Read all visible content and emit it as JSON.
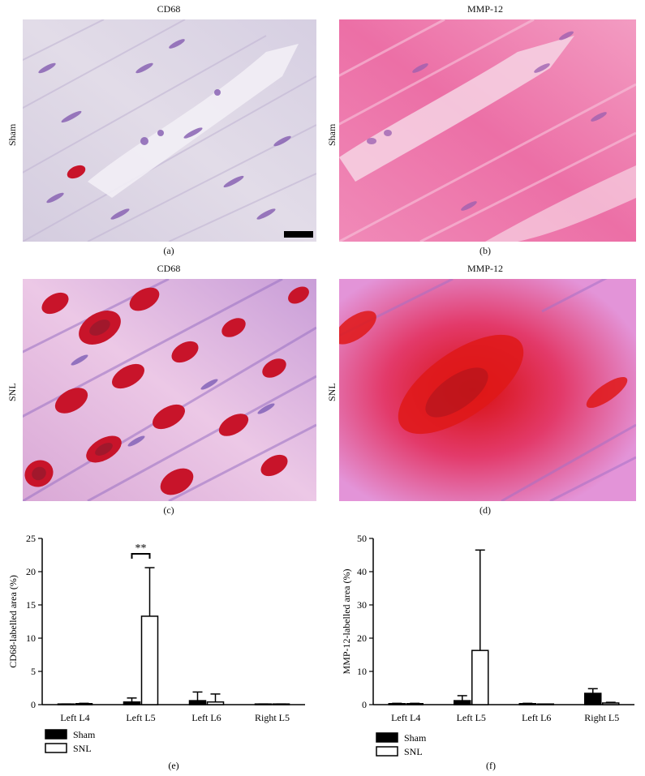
{
  "panels": [
    {
      "id": "a",
      "stain": "CD68",
      "group": "Sham",
      "label": "(a)"
    },
    {
      "id": "b",
      "stain": "MMP-12",
      "group": "Sham",
      "label": "(b)"
    },
    {
      "id": "c",
      "stain": "CD68",
      "group": "SNL",
      "label": "(c)"
    },
    {
      "id": "d",
      "stain": "MMP-12",
      "group": "SNL",
      "label": "(d)"
    }
  ],
  "colors": {
    "sham_bg": "#d8d2e2",
    "sham_nucleus": "#8a64b4",
    "mmp_sham_bg": "#ee88b4",
    "snl_bg": "#e4b4dc",
    "cd68_stain": "#c8142a",
    "mmp_snl_stain": "#e01818"
  },
  "chart_data": [
    {
      "type": "bar",
      "panel_label": "(e)",
      "ylabel": "CD68-labelled area (%)",
      "categories": [
        "Left L4",
        "Left L5",
        "Left L6",
        "Right L5"
      ],
      "ylim": [
        0,
        25
      ],
      "yticks": [
        0,
        5,
        10,
        15,
        20,
        25
      ],
      "series": [
        {
          "name": "Sham",
          "fill": "#000000",
          "values": [
            0.05,
            0.4,
            0.6,
            0.05
          ],
          "errors": [
            0.05,
            0.6,
            1.3,
            0.05
          ]
        },
        {
          "name": "SNL",
          "fill": "#ffffff",
          "values": [
            0.15,
            13.3,
            0.4,
            0.05
          ],
          "errors": [
            0.05,
            7.3,
            1.2,
            0.05
          ]
        }
      ],
      "significance": {
        "category": "Left L5",
        "text": "**"
      },
      "legend": "bottom-left"
    },
    {
      "type": "bar",
      "panel_label": "(f)",
      "ylabel": "MMP-12-labelled area (%)",
      "categories": [
        "Left L4",
        "Left L5",
        "Left L6",
        "Right L5"
      ],
      "ylim": [
        0,
        50
      ],
      "yticks": [
        0,
        10,
        20,
        30,
        40,
        50
      ],
      "series": [
        {
          "name": "Sham",
          "fill": "#000000",
          "values": [
            0.3,
            1.2,
            0.3,
            3.4
          ],
          "errors": [
            0.1,
            1.5,
            0.1,
            1.4
          ]
        },
        {
          "name": "SNL",
          "fill": "#ffffff",
          "values": [
            0.3,
            16.3,
            0.05,
            0.5
          ],
          "errors": [
            0.1,
            30.2,
            0.05,
            0.2
          ]
        }
      ],
      "legend": "bottom-left"
    }
  ]
}
